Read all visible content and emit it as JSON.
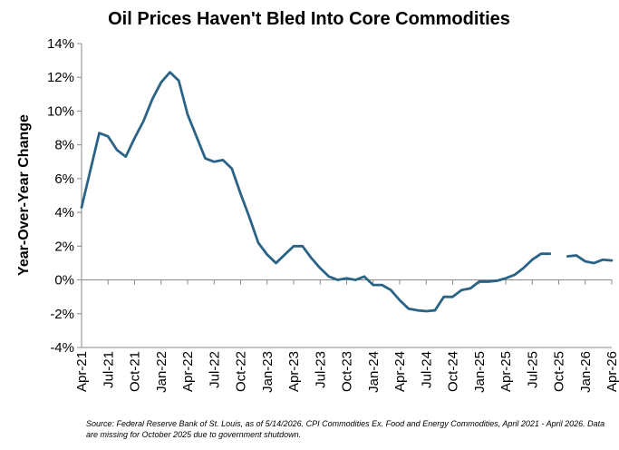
{
  "chart_data": {
    "type": "line",
    "title": "Oil Prices Haven't Bled Into Core Commodities",
    "ylabel": "Year-Over-Year Change",
    "xlabel": "",
    "ylim": [
      -4,
      14
    ],
    "yticks": [
      "-4%",
      "-2%",
      "0%",
      "2%",
      "4%",
      "6%",
      "8%",
      "10%",
      "12%",
      "14%"
    ],
    "ytick_values": [
      -4,
      -2,
      0,
      2,
      4,
      6,
      8,
      10,
      12,
      14
    ],
    "xticks": [
      "Apr-21",
      "Jul-21",
      "Oct-21",
      "Jan-22",
      "Apr-22",
      "Jul-22",
      "Oct-22",
      "Jan-23",
      "Apr-23",
      "Jul-23",
      "Oct-23",
      "Jan-24",
      "Apr-24",
      "Jul-24",
      "Oct-24",
      "Jan-25",
      "Apr-25",
      "Jul-25",
      "Oct-25",
      "Jan-26",
      "Apr-26"
    ],
    "grid": false,
    "line_color": "#2b6387",
    "series": [
      {
        "values": [
          4.3,
          6.5,
          8.7,
          8.5,
          7.7,
          7.3,
          8.4,
          9.4,
          10.7,
          11.7,
          12.3,
          11.8,
          9.8,
          8.5,
          7.2,
          7.0,
          7.1,
          6.6,
          5.1,
          3.7,
          2.2,
          1.5,
          1.0,
          1.5,
          2.0,
          2.0,
          1.3,
          0.7,
          0.2,
          0.0,
          0.1,
          0.0,
          0.2,
          -0.3,
          -0.3,
          -0.6,
          -1.2,
          -1.7,
          -1.8,
          -1.85,
          -1.8,
          -1.0,
          -1.0,
          -0.6,
          -0.5,
          -0.1,
          -0.1,
          -0.05,
          0.1,
          0.3,
          0.7,
          1.2,
          1.55,
          1.55,
          null,
          1.4,
          1.45,
          1.1,
          1.0,
          1.2,
          1.15
        ]
      }
    ]
  },
  "source_note": "Source: Federal Reserve Bank of St. Louis, as of 5/14/2026. CPI Commodities Ex. Food and Energy Commodities, April 2021 - April 2026. Data are missing for October 2025 due to government shutdown."
}
